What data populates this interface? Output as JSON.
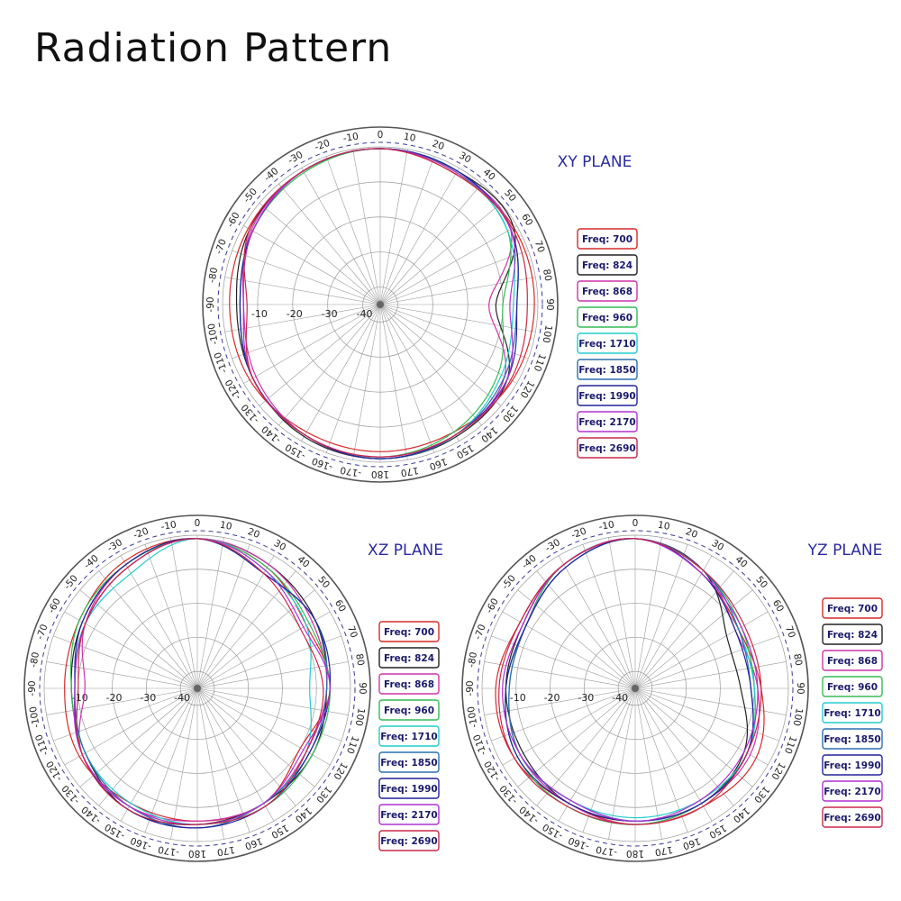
{
  "page": {
    "title": "Radiation Pattern"
  },
  "chart_data": [
    {
      "type": "polar-line",
      "title": "XY PLANE",
      "radial_ticks": [
        -40,
        -30,
        -20,
        -10
      ],
      "rlim": [
        -45,
        0
      ],
      "angle_ticks": [
        0,
        10,
        20,
        30,
        40,
        50,
        60,
        70,
        80,
        90,
        100,
        110,
        120,
        130,
        140,
        150,
        160,
        170,
        180,
        170,
        160,
        150,
        140,
        130,
        120,
        110,
        100,
        90,
        80,
        70,
        60,
        50,
        40,
        30,
        20,
        10
      ],
      "angle_tick_labels": [
        "0",
        "10",
        "20",
        "30",
        "40",
        "50",
        "60",
        "70",
        "80",
        "90",
        "100",
        "110",
        "120",
        "130",
        "140",
        "150",
        "160",
        "170",
        "180",
        "-170",
        "-160",
        "-150",
        "-140",
        "-130",
        "-120",
        "-110",
        "-100",
        "-90",
        "-80",
        "-70",
        "-60",
        "-50",
        "-40",
        "-30",
        "-20",
        "-10"
      ],
      "grid": true,
      "legend": "right",
      "angles_deg": [
        0,
        30,
        60,
        90,
        120,
        150,
        180,
        210,
        240,
        270,
        300,
        330
      ],
      "series": [
        {
          "name": "Freq: 700",
          "color": "#d42a2a",
          "values": [
            -0.5,
            -2,
            -1,
            -1,
            -1.5,
            -3,
            -3,
            -3,
            -2,
            -2,
            -1.5,
            -1
          ]
        },
        {
          "name": "Freq: 824",
          "color": "#222222",
          "values": [
            -0.5,
            -1,
            -1,
            -12,
            -3,
            -1.5,
            -1,
            -1.5,
            -3,
            -4,
            -2,
            -1
          ]
        },
        {
          "name": "Freq: 868",
          "color": "#cc33aa",
          "values": [
            -0.5,
            -1.5,
            -2,
            -14,
            -4,
            -2,
            -1,
            -2,
            -4,
            -6,
            -2.5,
            -1
          ]
        },
        {
          "name": "Freq: 960",
          "color": "#33bb55",
          "values": [
            -0.5,
            -1.5,
            -3,
            -10,
            -6,
            -3,
            -1.5,
            -2,
            -3,
            -5,
            -3,
            -1.5
          ]
        },
        {
          "name": "Freq: 1710",
          "color": "#22cccc",
          "values": [
            -0.5,
            -1,
            -3,
            -7,
            -5,
            -2,
            -1,
            -2,
            -3,
            -5,
            -3,
            -1
          ]
        },
        {
          "name": "Freq: 1850",
          "color": "#2a6fb0",
          "values": [
            -0.5,
            -1,
            -2,
            -6,
            -4,
            -2,
            -1,
            -2,
            -3,
            -5,
            -3,
            -1
          ]
        },
        {
          "name": "Freq: 1990",
          "color": "#22229a",
          "values": [
            -0.5,
            -1,
            -2,
            -6,
            -3,
            -2,
            -1,
            -2,
            -3,
            -5,
            -3,
            -1
          ]
        },
        {
          "name": "Freq: 2170",
          "color": "#b030d0",
          "values": [
            -0.5,
            -1.5,
            -2,
            -8,
            -3,
            -2,
            -1.5,
            -2,
            -3,
            -6,
            -3,
            -1
          ]
        },
        {
          "name": "Freq: 2690",
          "color": "#c8284a",
          "values": [
            -0.5,
            -2,
            -1.5,
            -3,
            -2,
            -2,
            -1.5,
            -2,
            -3,
            -7,
            -2,
            -1
          ]
        }
      ]
    },
    {
      "type": "polar-line",
      "title": "XZ PLANE",
      "radial_ticks": [
        -40,
        -30,
        -20,
        -10
      ],
      "rlim": [
        -45,
        0
      ],
      "angle_tick_labels": [
        "0",
        "10",
        "20",
        "30",
        "40",
        "50",
        "60",
        "70",
        "80",
        "90",
        "100",
        "110",
        "120",
        "130",
        "140",
        "150",
        "160",
        "170",
        "180",
        "-170",
        "-160",
        "-150",
        "-140",
        "-130",
        "-120",
        "-110",
        "-100",
        "-90",
        "-80",
        "-70",
        "-60",
        "-50",
        "-40",
        "-30",
        "-20",
        "-10"
      ],
      "grid": true,
      "legend": "right",
      "angles_deg": [
        0,
        30,
        60,
        90,
        120,
        150,
        180,
        210,
        240,
        270,
        300,
        330
      ],
      "series": [
        {
          "name": "Freq: 700",
          "color": "#d42a2a",
          "values": [
            -1,
            -4,
            -8,
            -6,
            -10,
            -6,
            -6,
            -6,
            -5,
            -6,
            -5,
            -2
          ]
        },
        {
          "name": "Freq: 824",
          "color": "#222222",
          "values": [
            -1,
            -3,
            -5,
            -7,
            -6,
            -6,
            -5,
            -4,
            -7,
            -8,
            -6,
            -3
          ]
        },
        {
          "name": "Freq: 868",
          "color": "#cc33aa",
          "values": [
            -1,
            -3,
            -6,
            -7,
            -8,
            -6,
            -6,
            -5,
            -6,
            -12,
            -7,
            -3
          ]
        },
        {
          "name": "Freq: 960",
          "color": "#33bb55",
          "values": [
            -1,
            -4,
            -7,
            -6,
            -6,
            -5,
            -5,
            -5,
            -7,
            -8,
            -5,
            -3
          ]
        },
        {
          "name": "Freq: 1710",
          "color": "#22cccc",
          "values": [
            -1,
            -5,
            -8,
            -12,
            -8,
            -6,
            -5,
            -6,
            -7,
            -9,
            -7,
            -6
          ]
        },
        {
          "name": "Freq: 1850",
          "color": "#2a6fb0",
          "values": [
            -1,
            -6,
            -5,
            -7,
            -7,
            -6,
            -4,
            -5,
            -7,
            -9,
            -7,
            -4
          ]
        },
        {
          "name": "Freq: 1990",
          "color": "#22229a",
          "values": [
            -1,
            -6,
            -5,
            -6,
            -7,
            -5,
            -4,
            -4,
            -6,
            -9,
            -6,
            -3
          ]
        },
        {
          "name": "Freq: 2170",
          "color": "#b030d0",
          "values": [
            -1,
            -5,
            -9,
            -6,
            -9,
            -6,
            -5,
            -5,
            -6,
            -9,
            -7,
            -4
          ]
        },
        {
          "name": "Freq: 2690",
          "color": "#c8284a",
          "values": [
            -1,
            -6,
            -10,
            -8,
            -8,
            -5,
            -5,
            -4,
            -6,
            -10,
            -7,
            -4
          ]
        }
      ]
    },
    {
      "type": "polar-line",
      "title": "YZ PLANE",
      "radial_ticks": [
        -40,
        -30,
        -20,
        -10
      ],
      "rlim": [
        -45,
        0
      ],
      "angle_tick_labels": [
        "0",
        "10",
        "20",
        "30",
        "40",
        "50",
        "60",
        "70",
        "80",
        "90",
        "100",
        "110",
        "120",
        "130",
        "140",
        "150",
        "160",
        "170",
        "180",
        "-170",
        "-160",
        "-150",
        "-140",
        "-130",
        "-120",
        "-110",
        "-100",
        "-90",
        "-80",
        "-70",
        "-60",
        "-50",
        "-40",
        "-30",
        "-20",
        "-10"
      ],
      "grid": true,
      "legend": "right",
      "angles_deg": [
        0,
        30,
        60,
        90,
        120,
        150,
        180,
        210,
        240,
        270,
        300,
        330
      ],
      "series": [
        {
          "name": "Freq: 700",
          "color": "#d42a2a",
          "values": [
            -1,
            -6,
            -10,
            -8,
            -4,
            -5,
            -5,
            -6,
            -4,
            -4,
            -6,
            -3
          ]
        },
        {
          "name": "Freq: 824",
          "color": "#222222",
          "values": [
            -1,
            -5,
            -14,
            -14,
            -8,
            -6,
            -6,
            -6,
            -7,
            -7,
            -7,
            -3
          ]
        },
        {
          "name": "Freq: 868",
          "color": "#cc33aa",
          "values": [
            -1,
            -5,
            -11,
            -9,
            -6,
            -6,
            -5,
            -6,
            -6,
            -8,
            -8,
            -3
          ]
        },
        {
          "name": "Freq: 960",
          "color": "#33bb55",
          "values": [
            -1,
            -5,
            -9,
            -10,
            -7,
            -6,
            -5,
            -5,
            -5,
            -7,
            -8,
            -3
          ]
        },
        {
          "name": "Freq: 1710",
          "color": "#22cccc",
          "values": [
            -1,
            -5,
            -10,
            -10,
            -7,
            -7,
            -7,
            -7,
            -6,
            -8,
            -8,
            -4
          ]
        },
        {
          "name": "Freq: 1850",
          "color": "#2a6fb0",
          "values": [
            -1,
            -5,
            -10,
            -11,
            -7,
            -6,
            -6,
            -7,
            -6,
            -8,
            -8,
            -4
          ]
        },
        {
          "name": "Freq: 1990",
          "color": "#22229a",
          "values": [
            -1,
            -6,
            -11,
            -11,
            -7,
            -6,
            -6,
            -6,
            -5,
            -7,
            -8,
            -4
          ]
        },
        {
          "name": "Freq: 2170",
          "color": "#b030d0",
          "values": [
            -1,
            -6,
            -9,
            -9,
            -8,
            -7,
            -6,
            -7,
            -6,
            -6,
            -7,
            -3
          ]
        },
        {
          "name": "Freq: 2690",
          "color": "#c8284a",
          "values": [
            -1,
            -5,
            -8,
            -8,
            -7,
            -5,
            -5,
            -5,
            -4,
            -5,
            -6,
            -3
          ]
        }
      ]
    }
  ]
}
